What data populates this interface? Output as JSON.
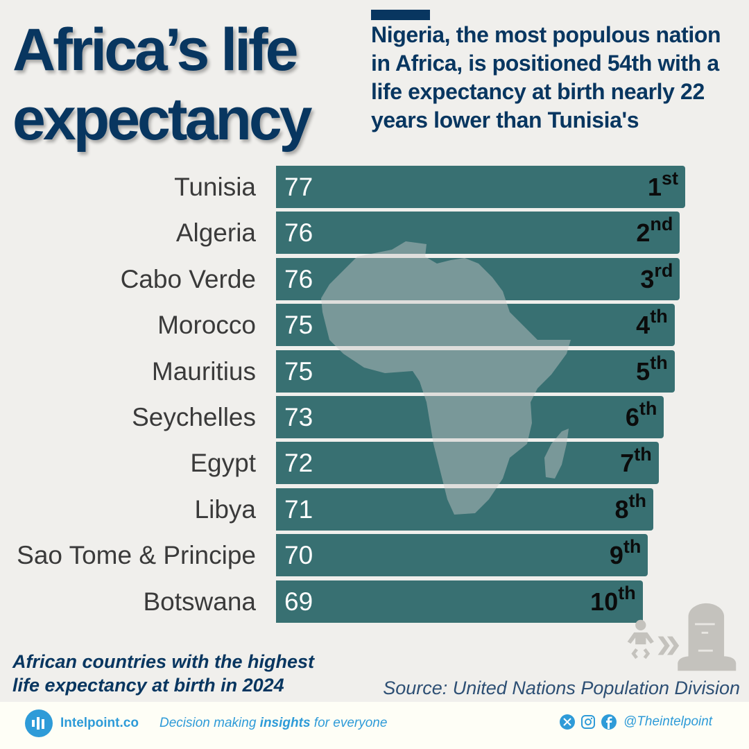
{
  "title": "Africa’s life expectancy",
  "subtitle": "Nigeria, the most populous nation in Africa, is positioned 54th with a life expectancy at birth nearly 22 years lower than Tunisia's",
  "caption_line1": "African countries with the highest",
  "caption_line2": "life expectancy at birth in 2024",
  "source": "Source: United Nations Population Division",
  "colors": {
    "bar": "#387072",
    "title": "#083660",
    "background": "#f0efec",
    "footer_accent": "#2e9bd8"
  },
  "chart_data": {
    "type": "bar",
    "orientation": "horizontal",
    "categories": [
      "Tunisia",
      "Algeria",
      "Cabo Verde",
      "Morocco",
      "Mauritius",
      "Seychelles",
      "Egypt",
      "Libya",
      "Sao Tome & Principe",
      "Botswana"
    ],
    "values": [
      77,
      76,
      76,
      75,
      75,
      73,
      72,
      71,
      70,
      69
    ],
    "ranks": [
      {
        "num": "1",
        "suffix": "st"
      },
      {
        "num": "2",
        "suffix": "nd"
      },
      {
        "num": "3",
        "suffix": "rd"
      },
      {
        "num": "4",
        "suffix": "th"
      },
      {
        "num": "5",
        "suffix": "th"
      },
      {
        "num": "6",
        "suffix": "th"
      },
      {
        "num": "7",
        "suffix": "th"
      },
      {
        "num": "8",
        "suffix": "th"
      },
      {
        "num": "9",
        "suffix": "th"
      },
      {
        "num": "10",
        "suffix": "th"
      }
    ],
    "xlim": [
      0,
      77
    ],
    "grid": false,
    "legend": "none"
  },
  "footer": {
    "brand": "Intelpoint.co",
    "tagline_pre": "Decision making ",
    "tagline_bold": "insights",
    "tagline_post": " for everyone",
    "handle": "@Theintelpoint",
    "social_icons": [
      "x-icon",
      "instagram-icon",
      "facebook-icon"
    ]
  }
}
